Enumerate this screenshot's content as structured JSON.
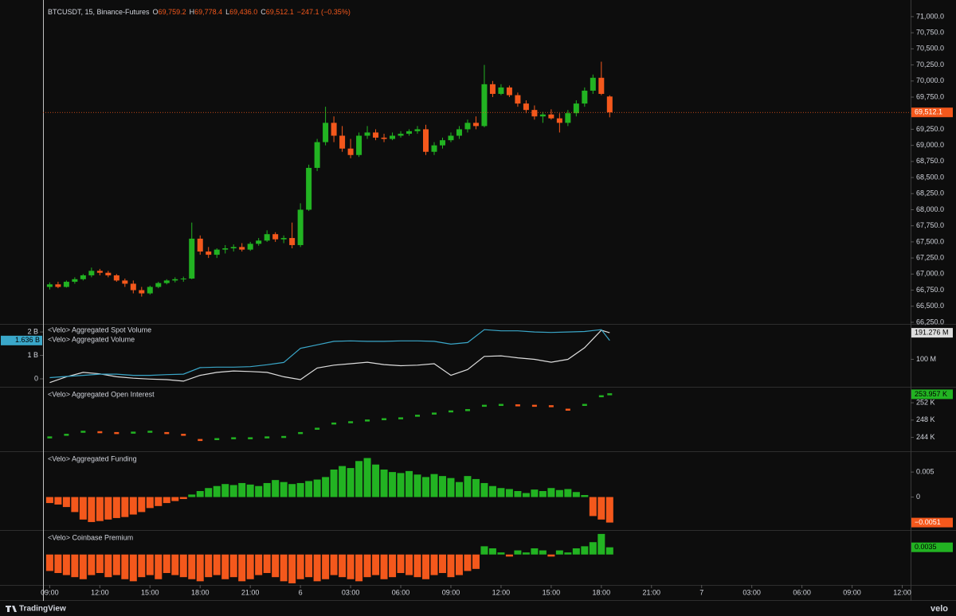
{
  "chart_data": [
    {
      "type": "candlestick",
      "title": "BTCUSDT, 15, Binance-Futures",
      "legend": [
        {
          "key": "O",
          "value": "69,759.2"
        },
        {
          "key": "H",
          "value": "69,778.4"
        },
        {
          "key": "L",
          "value": "69,436.0"
        },
        {
          "key": "C",
          "value": "69,512.1"
        }
      ],
      "change": "−247.1 (−0.35%)",
      "up_color": "#22b322",
      "down_color": "#f4581c",
      "x": [
        0,
        0.5,
        1,
        1.5,
        2,
        2.5,
        3,
        3.5,
        4,
        4.5,
        5,
        5.5,
        6,
        6.5,
        7,
        7.5,
        8,
        8.5,
        9,
        9.5,
        10,
        10.5,
        11,
        11.5,
        12,
        12.5,
        13,
        13.5,
        14,
        14.5,
        15,
        15.5,
        16,
        16.5,
        17,
        17.5,
        18,
        18.5,
        19,
        19.5,
        20,
        20.5,
        21,
        21.5,
        22,
        22.5,
        23,
        23.5,
        24,
        24.5,
        25,
        25.5,
        26,
        26.5,
        27,
        27.5,
        28,
        28.5,
        29,
        29.5,
        30,
        30.5,
        31,
        31.5,
        32,
        32.5,
        33,
        33.5
      ],
      "open": [
        66800,
        66840,
        66800,
        66880,
        66920,
        66980,
        67050,
        67020,
        66980,
        66900,
        66850,
        66750,
        66700,
        66800,
        66860,
        66900,
        66920,
        66930,
        67550,
        67350,
        67300,
        67380,
        67400,
        67420,
        67380,
        67470,
        67520,
        67620,
        67540,
        67560,
        67450,
        68000,
        68650,
        69050,
        69350,
        69150,
        68950,
        68850,
        69150,
        69200,
        69120,
        69100,
        69150,
        69180,
        69220,
        69250,
        68900,
        69000,
        69080,
        69150,
        69250,
        69350,
        69300,
        69950,
        69800,
        69900,
        69780,
        69650,
        69550,
        69450,
        69480,
        69420,
        69350,
        69500,
        69650,
        69850,
        70050,
        69759.2
      ],
      "high": [
        66870,
        66880,
        66900,
        66950,
        67000,
        67100,
        67080,
        67050,
        67000,
        66930,
        66900,
        66800,
        66820,
        66880,
        66920,
        66950,
        66960,
        67800,
        67600,
        67420,
        67400,
        67450,
        67460,
        67480,
        67500,
        67560,
        67680,
        67650,
        67600,
        67800,
        68100,
        68700,
        69100,
        69600,
        69450,
        69300,
        69100,
        69200,
        69300,
        69250,
        69180,
        69200,
        69220,
        69250,
        69300,
        69320,
        69050,
        69120,
        69200,
        69300,
        69400,
        69450,
        70250,
        70000,
        69950,
        69930,
        69820,
        69700,
        69620,
        69520,
        69560,
        69500,
        69550,
        69700,
        69900,
        70100,
        70300,
        69778.4
      ],
      "low": [
        66760,
        66780,
        66790,
        66850,
        66900,
        66950,
        66980,
        66950,
        66880,
        66800,
        66700,
        66650,
        66680,
        66780,
        66840,
        66870,
        66880,
        66920,
        67300,
        67250,
        67250,
        67320,
        67350,
        67350,
        67360,
        67440,
        67500,
        67500,
        67480,
        67400,
        67420,
        67980,
        68600,
        69000,
        69050,
        68900,
        68800,
        68820,
        69100,
        69080,
        69050,
        69080,
        69120,
        69150,
        69180,
        68850,
        68850,
        68950,
        69050,
        69100,
        69200,
        69250,
        69280,
        69750,
        69780,
        69750,
        69600,
        69500,
        69400,
        69350,
        69400,
        69200,
        69300,
        69450,
        69600,
        69800,
        69780,
        69436.0
      ],
      "close": [
        66840,
        66800,
        66880,
        66920,
        66980,
        67050,
        67020,
        66980,
        66900,
        66850,
        66750,
        66700,
        66800,
        66860,
        66900,
        66920,
        66930,
        67550,
        67350,
        67300,
        67380,
        67400,
        67420,
        67380,
        67470,
        67520,
        67620,
        67540,
        67560,
        67450,
        68000,
        68650,
        69050,
        69350,
        69150,
        68950,
        68850,
        69150,
        69200,
        69120,
        69100,
        69150,
        69180,
        69220,
        69250,
        68900,
        69000,
        69080,
        69150,
        69250,
        69350,
        69300,
        69950,
        69800,
        69900,
        69780,
        69650,
        69550,
        69450,
        69480,
        69420,
        69350,
        69500,
        69650,
        69850,
        70050,
        69800,
        69512.1
      ],
      "last_label": "69,512.1",
      "ylim": [
        66225,
        71160
      ],
      "yticks": [
        {
          "value": 66250,
          "label": "66,250.0"
        },
        {
          "value": 66500,
          "label": "66,500.0"
        },
        {
          "value": 66750,
          "label": "66,750.0"
        },
        {
          "value": 67000,
          "label": "67,000.0"
        },
        {
          "value": 67250,
          "label": "67,250.0"
        },
        {
          "value": 67500,
          "label": "67,500.0"
        },
        {
          "value": 67750,
          "label": "67,750.0"
        },
        {
          "value": 68000,
          "label": "68,000.0"
        },
        {
          "value": 68250,
          "label": "68,250.0"
        },
        {
          "value": 68500,
          "label": "68,500.0"
        },
        {
          "value": 68750,
          "label": "68,750.0"
        },
        {
          "value": 69000,
          "label": "69,000.0"
        },
        {
          "value": 69250,
          "label": "69,250.0"
        },
        {
          "value": 69500,
          "label": "69,500.0"
        },
        {
          "value": 69750,
          "label": "69,750.0"
        },
        {
          "value": 70000,
          "label": "70,000.0"
        },
        {
          "value": 70250,
          "label": "70,250.0"
        },
        {
          "value": 70500,
          "label": "70,500.0"
        },
        {
          "value": 70750,
          "label": "70,750.0"
        },
        {
          "value": 71000,
          "label": "71,000.0"
        }
      ]
    },
    {
      "type": "line",
      "series": [
        {
          "name": "<Velo> Aggregated Spot Volume",
          "color": "#dddddd",
          "axis": "y2",
          "last_label": "191.276 M",
          "x": [
            0,
            1,
            2,
            3,
            4,
            5,
            6,
            7,
            8,
            9,
            10,
            11,
            12,
            13,
            14,
            15,
            16,
            17,
            18,
            19,
            20,
            21,
            22,
            23,
            24,
            25,
            26,
            27,
            28,
            29,
            30,
            31,
            32,
            33,
            33.5
          ],
          "values": [
            20,
            40,
            55,
            50,
            40,
            35,
            32,
            30,
            25,
            45,
            55,
            60,
            58,
            55,
            40,
            30,
            70,
            80,
            85,
            90,
            82,
            78,
            80,
            85,
            45,
            65,
            110,
            112,
            105,
            100,
            90,
            100,
            140,
            200,
            191.276
          ]
        },
        {
          "name": "<Velo> Aggregated Volume",
          "color": "#3aa7c9",
          "last_label": "1.636 B",
          "x": [
            0,
            1,
            2,
            3,
            4,
            5,
            6,
            7,
            8,
            9,
            10,
            11,
            12,
            13,
            14,
            15,
            16,
            17,
            18,
            19,
            20,
            21,
            22,
            23,
            24,
            25,
            26,
            27,
            28,
            29,
            30,
            31,
            32,
            33,
            33.5
          ],
          "values": [
            0.05,
            0.1,
            0.15,
            0.2,
            0.2,
            0.15,
            0.15,
            0.18,
            0.2,
            0.48,
            0.5,
            0.5,
            0.52,
            0.6,
            0.7,
            1.3,
            1.45,
            1.6,
            1.62,
            1.6,
            1.6,
            1.62,
            1.62,
            1.6,
            1.48,
            1.55,
            2.1,
            2.05,
            2.05,
            2.0,
            1.98,
            2.0,
            2.02,
            2.1,
            1.636
          ]
        }
      ],
      "ylim": [
        -0.34,
        2.31
      ],
      "yticks": [
        {
          "value": 2,
          "label": "2 B"
        },
        {
          "value": 1,
          "label": "1 B"
        },
        0
      ],
      "y2lim": [
        5.5,
        219
      ],
      "y2ticks": [
        {
          "value": 100,
          "label": "100 M"
        }
      ]
    },
    {
      "type": "segments",
      "title": "<Velo> Aggregated Open Interest",
      "up_color": "#22b322",
      "down_color": "#f4581c",
      "x": [
        0,
        1,
        2,
        3,
        4,
        5,
        6,
        7,
        8,
        9,
        10,
        11,
        12,
        13,
        14,
        15,
        16,
        17,
        18,
        19,
        20,
        21,
        22,
        23,
        24,
        25,
        26,
        27,
        28,
        29,
        30,
        31,
        32,
        33,
        33.5
      ],
      "values": [
        244,
        244.6,
        245.3,
        245.2,
        245,
        245.1,
        245.3,
        245,
        244.6,
        243.4,
        243.6,
        243.8,
        243.8,
        244,
        244.1,
        245,
        246,
        247.2,
        247.5,
        247.9,
        248.2,
        248.4,
        249,
        249.5,
        250,
        250.3,
        251.3,
        251.5,
        251.4,
        251.3,
        251.2,
        250.4,
        251.5,
        253.5,
        253.957
      ],
      "last_label": "253.957 K",
      "ylim": [
        240.8,
        255.5
      ],
      "yticks": [
        {
          "value": 252,
          "label": "252 K"
        },
        {
          "value": 248,
          "label": "248 K"
        },
        {
          "value": 244,
          "label": "244 K"
        }
      ]
    },
    {
      "type": "bar",
      "title": "<Velo> Aggregated Funding",
      "up_color": "#22b322",
      "down_color": "#f4581c",
      "x": [
        0,
        0.5,
        1,
        1.5,
        2,
        2.5,
        3,
        3.5,
        4,
        4.5,
        5,
        5.5,
        6,
        6.5,
        7,
        7.5,
        8,
        8.5,
        9,
        9.5,
        10,
        10.5,
        11,
        11.5,
        12,
        12.5,
        13,
        13.5,
        14,
        14.5,
        15,
        15.5,
        16,
        16.5,
        17,
        17.5,
        18,
        18.5,
        19,
        19.5,
        20,
        20.5,
        21,
        21.5,
        22,
        22.5,
        23,
        23.5,
        24,
        24.5,
        25,
        25.5,
        26,
        26.5,
        27,
        27.5,
        28,
        28.5,
        29,
        29.5,
        30,
        30.5,
        31,
        31.5,
        32,
        32.5,
        33,
        33.5
      ],
      "values": [
        -0.0012,
        -0.0015,
        -0.002,
        -0.003,
        -0.0045,
        -0.005,
        -0.0048,
        -0.0045,
        -0.0042,
        -0.004,
        -0.0035,
        -0.003,
        -0.0022,
        -0.0018,
        -0.0012,
        -0.0008,
        -0.0004,
        0.0005,
        0.0012,
        0.0018,
        0.0022,
        0.0026,
        0.0024,
        0.0028,
        0.0025,
        0.0022,
        0.0028,
        0.0034,
        0.003,
        0.0026,
        0.0028,
        0.0032,
        0.0035,
        0.004,
        0.0055,
        0.0062,
        0.0058,
        0.0072,
        0.0078,
        0.0065,
        0.0055,
        0.005,
        0.0048,
        0.0052,
        0.0045,
        0.004,
        0.0046,
        0.0042,
        0.0038,
        0.003,
        0.0042,
        0.0036,
        0.0028,
        0.0022,
        0.0018,
        0.0016,
        0.0012,
        0.0008,
        0.0015,
        0.0012,
        0.0018,
        0.0014,
        0.0016,
        0.001,
        0.0004,
        -0.0038,
        -0.0045,
        -0.0051
      ],
      "last_label": "−0.0051",
      "ylim": [
        -0.0066,
        0.009
      ],
      "yticks": [
        0.005,
        0
      ]
    },
    {
      "type": "bar",
      "title": "<Velo> Coinbase Premium",
      "up_color": "#22b322",
      "down_color": "#f4581c",
      "x": [
        0,
        0.5,
        1,
        1.5,
        2,
        2.5,
        3,
        3.5,
        4,
        4.5,
        5,
        5.5,
        6,
        6.5,
        7,
        7.5,
        8,
        8.5,
        9,
        9.5,
        10,
        10.5,
        11,
        11.5,
        12,
        12.5,
        13,
        13.5,
        14,
        14.5,
        15,
        15.5,
        16,
        16.5,
        17,
        17.5,
        18,
        18.5,
        19,
        19.5,
        20,
        20.5,
        21,
        21.5,
        22,
        22.5,
        23,
        23.5,
        24,
        24.5,
        25,
        25.5,
        26,
        26.5,
        27,
        27.5,
        28,
        28.5,
        29,
        29.5,
        30,
        30.5,
        31,
        31.5,
        32,
        32.5,
        33,
        33.5
      ],
      "values": [
        -0.008,
        -0.009,
        -0.01,
        -0.011,
        -0.012,
        -0.01,
        -0.009,
        -0.011,
        -0.01,
        -0.012,
        -0.013,
        -0.011,
        -0.01,
        -0.012,
        -0.009,
        -0.01,
        -0.011,
        -0.012,
        -0.013,
        -0.011,
        -0.01,
        -0.012,
        -0.011,
        -0.013,
        -0.012,
        -0.01,
        -0.009,
        -0.011,
        -0.013,
        -0.014,
        -0.012,
        -0.011,
        -0.013,
        -0.012,
        -0.01,
        -0.011,
        -0.012,
        -0.013,
        -0.011,
        -0.01,
        -0.012,
        -0.011,
        -0.009,
        -0.01,
        -0.011,
        -0.012,
        -0.01,
        -0.009,
        -0.011,
        -0.01,
        -0.008,
        -0.007,
        0.004,
        0.003,
        0.001,
        -0.001,
        0.002,
        0.001,
        0.003,
        0.002,
        -0.001,
        0.002,
        0.001,
        0.003,
        0.004,
        0.006,
        0.01,
        0.0035
      ],
      "ylim": [
        -0.0148,
        0.0115
      ],
      "xlim": [
        -0.4,
        51.5
      ],
      "xticks": [
        {
          "value": 0,
          "label": "09:00"
        },
        {
          "value": 3,
          "label": "12:00"
        },
        {
          "value": 6,
          "label": "15:00"
        },
        {
          "value": 9,
          "label": "18:00"
        },
        {
          "value": 12,
          "label": "21:00"
        },
        {
          "value": 15,
          "label": "6"
        },
        {
          "value": 18,
          "label": "03:00"
        },
        {
          "value": 21,
          "label": "06:00"
        },
        {
          "value": 24,
          "label": "09:00"
        },
        {
          "value": 27,
          "label": "12:00"
        },
        {
          "value": 30,
          "label": "15:00"
        },
        {
          "value": 33,
          "label": "18:00"
        },
        {
          "value": 36,
          "label": "21:00"
        },
        {
          "value": 39,
          "label": "7"
        },
        {
          "value": 42,
          "label": "03:00"
        },
        {
          "value": 45,
          "label": "06:00"
        },
        {
          "value": 48,
          "label": "09:00"
        },
        {
          "value": 51,
          "label": "12:00"
        }
      ]
    }
  ],
  "footer": {
    "brand": "TradingView",
    "source": "velo"
  }
}
